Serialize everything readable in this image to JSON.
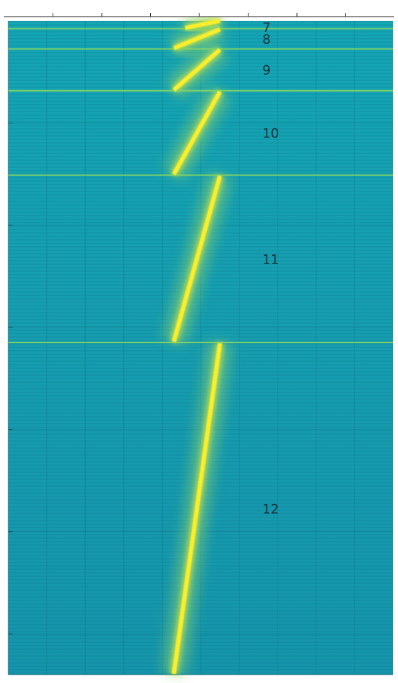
{
  "chart_data": {
    "type": "heatmap",
    "title": "",
    "xlabel": "",
    "ylabel": "",
    "xlim": [
      0,
      1
    ],
    "ylim": [
      0,
      1
    ],
    "grid": true,
    "colormap": "parula",
    "background_color": "#1aa3b0",
    "ridge_color": "#fcef2c",
    "separator_color": "#86d562",
    "segments": [
      {
        "label": "7",
        "y_start": 0.0,
        "y_end": 0.012,
        "x_start": 0.46,
        "x_end": 0.55
      },
      {
        "label": "8",
        "y_start": 0.012,
        "y_end": 0.043,
        "x_start": 0.43,
        "x_end": 0.55
      },
      {
        "label": "9",
        "y_start": 0.043,
        "y_end": 0.107,
        "x_start": 0.43,
        "x_end": 0.55
      },
      {
        "label": "10",
        "y_start": 0.107,
        "y_end": 0.236,
        "x_start": 0.43,
        "x_end": 0.55
      },
      {
        "label": "11",
        "y_start": 0.236,
        "y_end": 0.492,
        "x_start": 0.43,
        "x_end": 0.55
      },
      {
        "label": "12",
        "y_start": 0.492,
        "y_end": 1.0,
        "x_start": 0.43,
        "x_end": 0.55
      }
    ],
    "separators_y": [
      0.012,
      0.043,
      0.107,
      0.236,
      0.492
    ]
  }
}
